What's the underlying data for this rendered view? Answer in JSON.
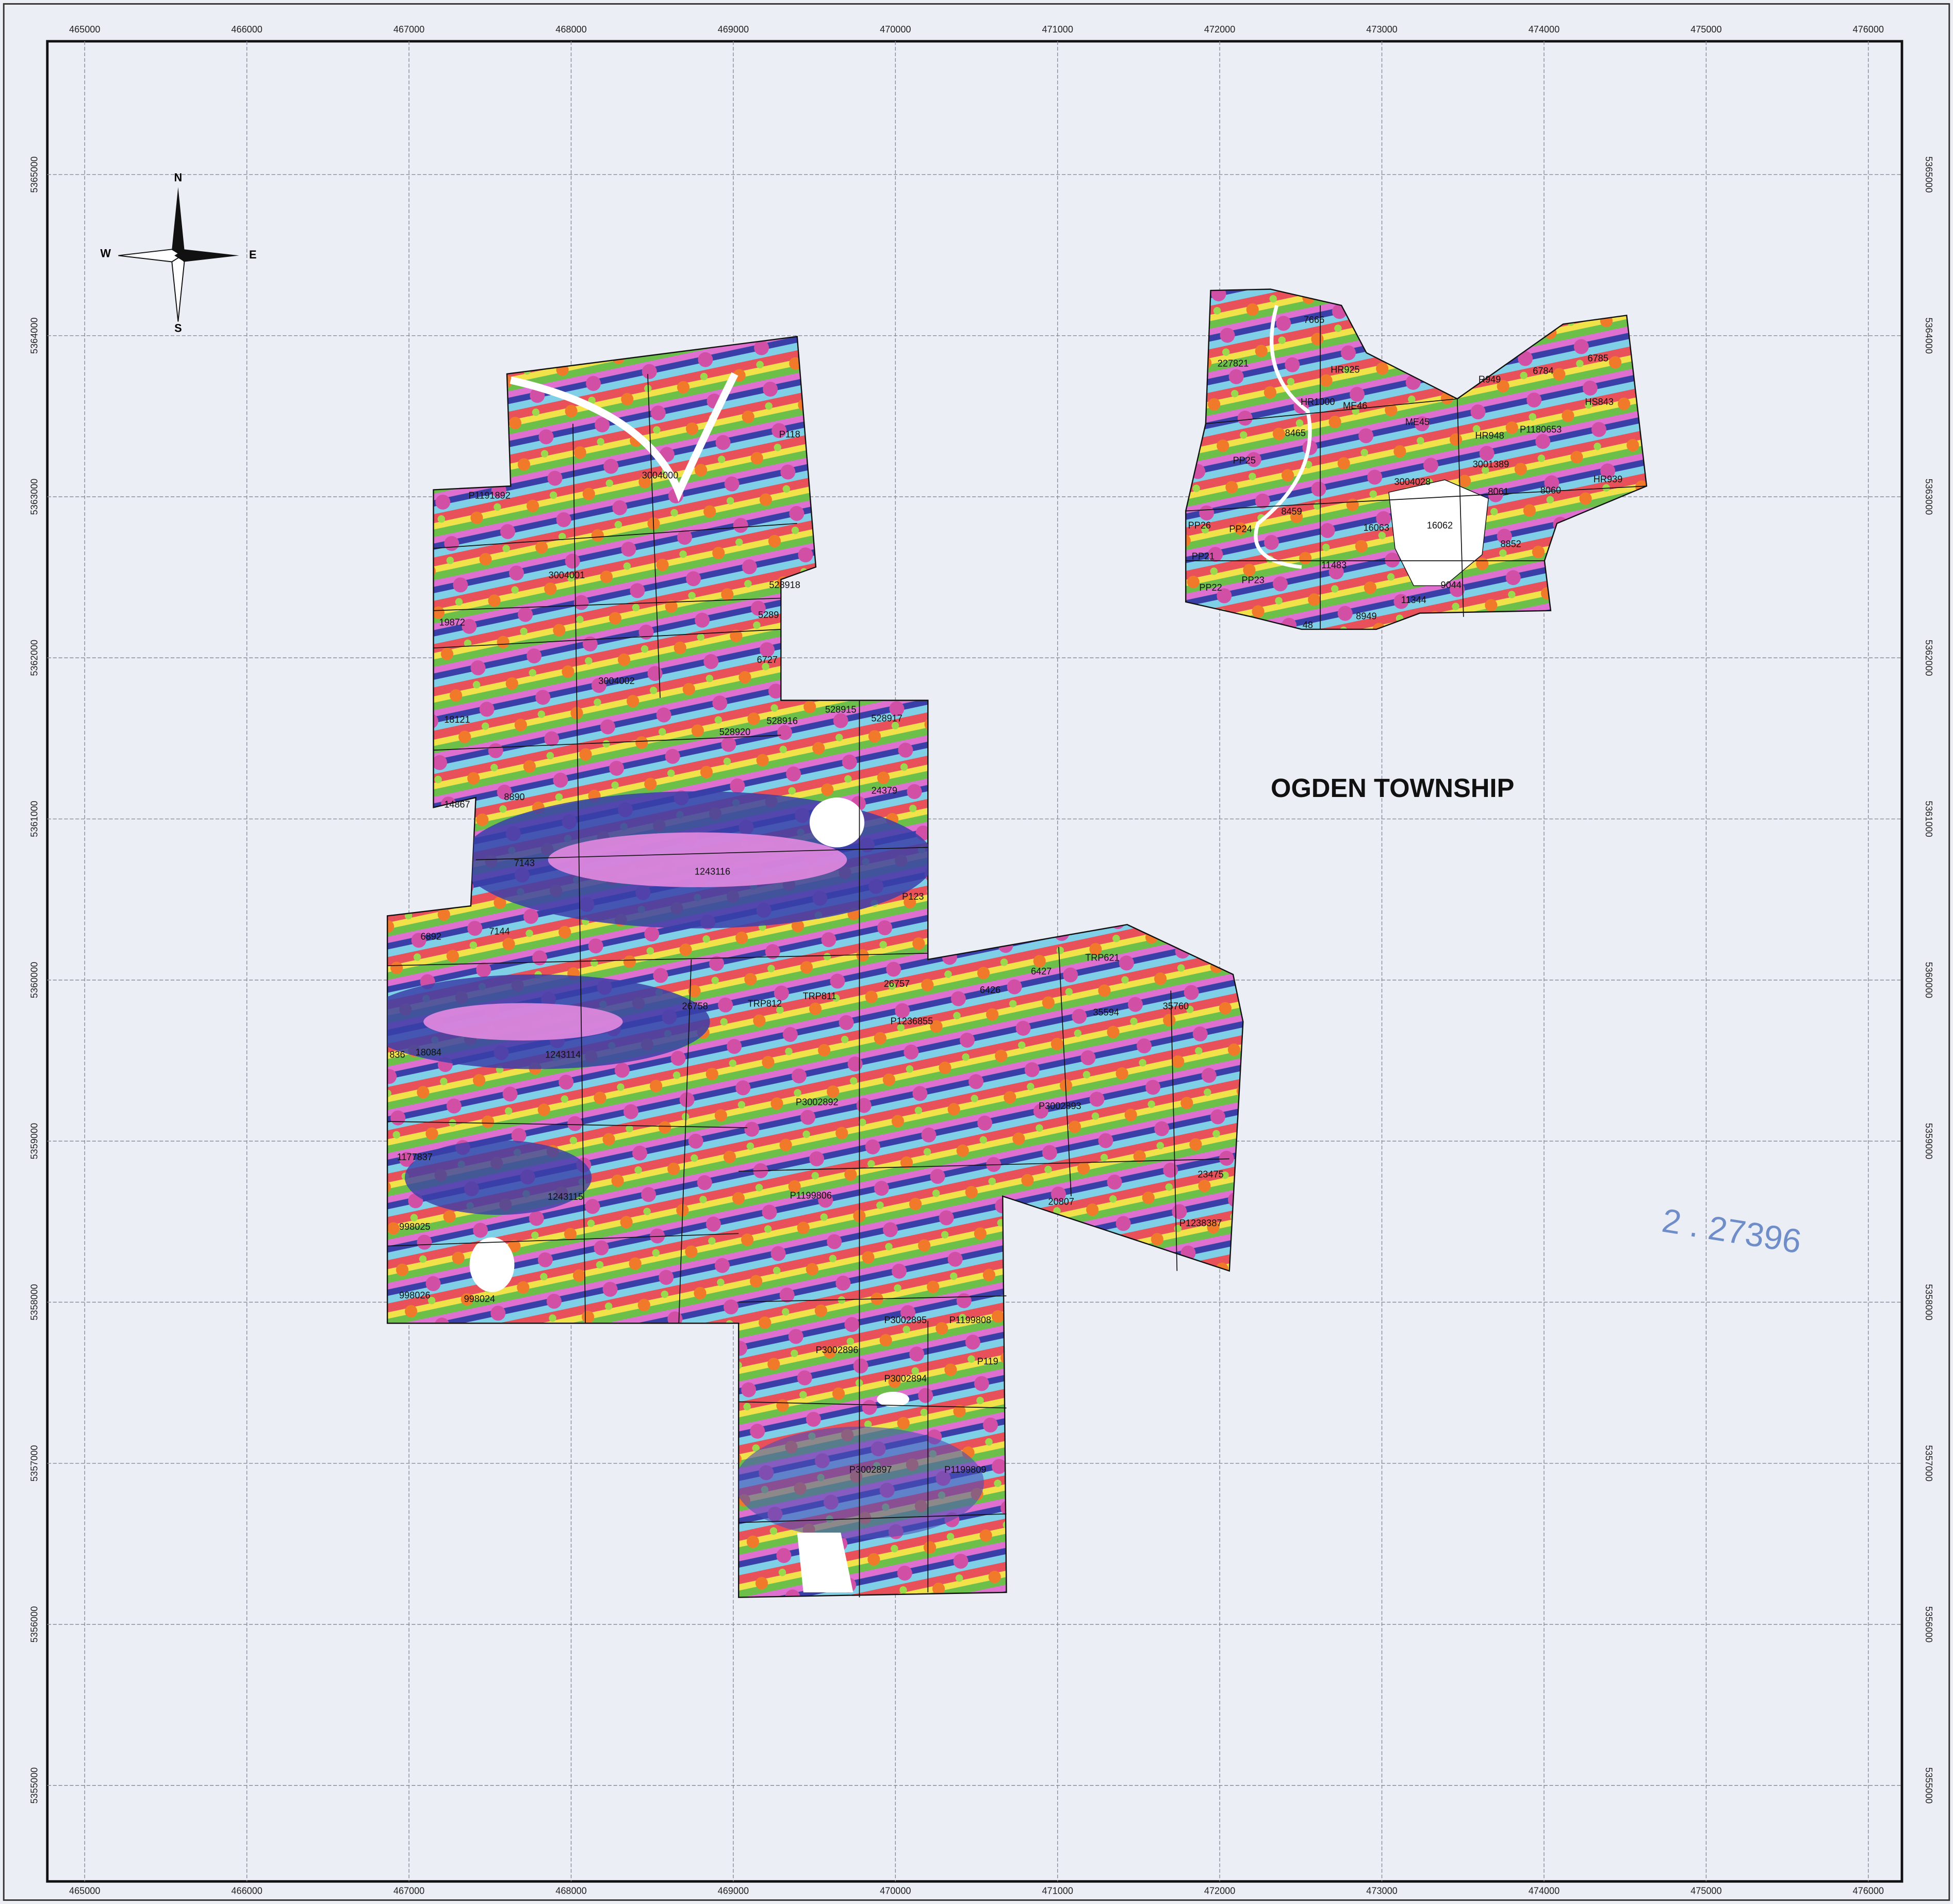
{
  "map": {
    "title": "OGDEN TOWNSHIP",
    "stamp": "2 . 27396",
    "compass": {
      "north": "N",
      "east": "E",
      "south": "S",
      "west": "W"
    },
    "easting_ticks": [
      465000,
      466000,
      467000,
      468000,
      469000,
      470000,
      471000,
      472000,
      473000,
      474000,
      475000,
      476000
    ],
    "northing_ticks": [
      5355000,
      5356000,
      5357000,
      5358000,
      5359000,
      5360000,
      5361000,
      5362000,
      5363000,
      5364000,
      5365000
    ],
    "claims": [
      "3004000",
      "P1191892",
      "P118",
      "3004001",
      "528918",
      "5289",
      "19872",
      "6727",
      "3004002",
      "18121",
      "528920",
      "528916",
      "528915",
      "528917",
      "24379",
      "8890",
      "14867",
      "7143",
      "1243116",
      "P123",
      "6892",
      "7144",
      "26758",
      "TRP812",
      "TRP811",
      "26757",
      "6426",
      "6427",
      "TRP621",
      "35594",
      "35760",
      "P1236855",
      "836",
      "18084",
      "1243114",
      "P3002892",
      "P3002893",
      "1177837",
      "23475",
      "1243115",
      "998025",
      "P1199806",
      "20807",
      "P1238387",
      "998026",
      "998024",
      "P3002895",
      "P1199808",
      "P3002896",
      "P119",
      "P3002894",
      "P3002897",
      "P1199809",
      "7666",
      "227821",
      "HR925",
      "R949",
      "6784",
      "6785",
      "HR1000",
      "ME46",
      "HS843",
      "8465",
      "ME45",
      "HR948",
      "P1180653",
      "PP25",
      "3004028",
      "3001389",
      "HR939",
      "8459",
      "8061",
      "8060",
      "PP26",
      "PP24",
      "16063",
      "16062",
      "8852",
      "PP21",
      "11483",
      "PP22",
      "PP23",
      "9044",
      "11344",
      "8949",
      "48"
    ]
  }
}
